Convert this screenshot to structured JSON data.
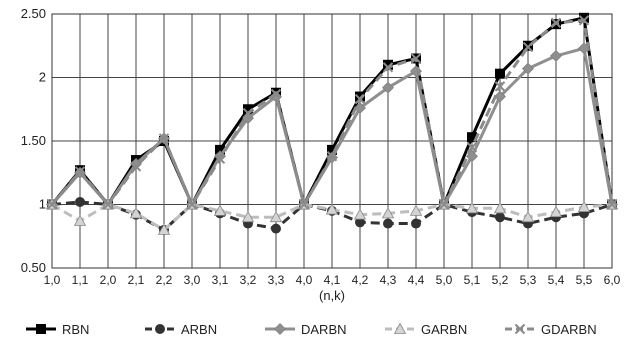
{
  "chart_data": {
    "type": "line",
    "xlabel": "(n,k)",
    "ylabel": "",
    "title": "",
    "categories": [
      "1,0",
      "1,1",
      "2,0",
      "2,1",
      "2,2",
      "3,0",
      "3,1",
      "3,2",
      "3,3",
      "4,0",
      "4,1",
      "4,2",
      "4,3",
      "4,4",
      "5,0",
      "5,1",
      "5,2",
      "5,3",
      "5,4",
      "5,5",
      "6,0"
    ],
    "ylim": [
      0.5,
      2.5
    ],
    "yticks": [
      0.5,
      1,
      1.5,
      2,
      2.5
    ],
    "ytick_labels": [
      "0.50",
      "1",
      "1.50",
      "2",
      "2.50"
    ],
    "grid": "vertical and horizontal",
    "legend_position": "bottom",
    "series": [
      {
        "name": "RBN",
        "marker": "square",
        "color": "#000000",
        "dash": "solid",
        "values": [
          1,
          1.27,
          1,
          1.35,
          1.5,
          1,
          1.43,
          1.75,
          1.88,
          1,
          1.43,
          1.85,
          2.1,
          2.15,
          1,
          1.53,
          2.03,
          2.25,
          2.42,
          2.47,
          1
        ]
      },
      {
        "name": "ARBN",
        "marker": "circle",
        "color": "#333333",
        "dash": "dashed",
        "values": [
          1,
          1.02,
          1,
          0.92,
          0.8,
          1,
          0.93,
          0.85,
          0.81,
          1,
          0.95,
          0.86,
          0.85,
          0.85,
          1,
          0.94,
          0.9,
          0.85,
          0.9,
          0.93,
          1
        ]
      },
      {
        "name": "DARBN",
        "marker": "diamond",
        "color": "#8f8f8f",
        "dash": "solid",
        "values": [
          1,
          1.25,
          1,
          1.32,
          1.52,
          1,
          1.38,
          1.68,
          1.85,
          1,
          1.37,
          1.76,
          1.92,
          2.05,
          1,
          1.38,
          1.85,
          2.07,
          2.17,
          2.23,
          1
        ]
      },
      {
        "name": "GARBN",
        "marker": "triangle",
        "color": "#bdbdbd",
        "dash": "dashed",
        "values": [
          1,
          0.87,
          1,
          0.93,
          0.8,
          1,
          0.95,
          0.9,
          0.9,
          1,
          0.96,
          0.92,
          0.93,
          0.95,
          1,
          0.97,
          0.97,
          0.9,
          0.94,
          0.98,
          1
        ]
      },
      {
        "name": "GDARBN",
        "marker": "x",
        "color": "#8a8a8a",
        "dash": "dashed",
        "values": [
          1,
          1.26,
          1,
          1.3,
          1.52,
          1,
          1.36,
          1.72,
          1.87,
          1,
          1.38,
          1.83,
          2.08,
          2.15,
          1,
          1.45,
          1.93,
          2.24,
          2.43,
          2.45,
          1
        ]
      }
    ]
  }
}
